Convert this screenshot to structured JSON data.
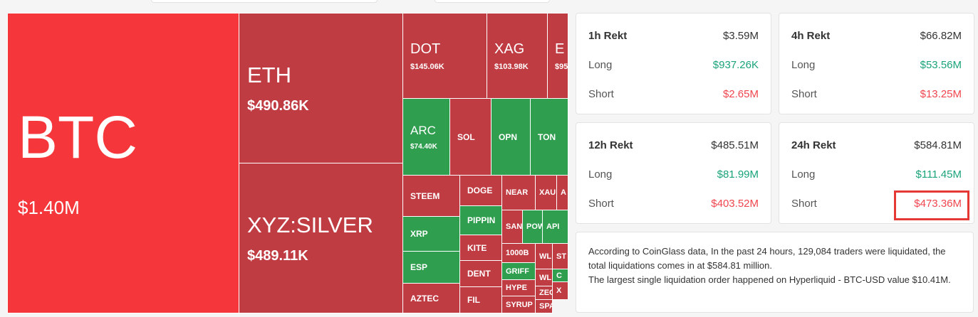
{
  "treemap": {
    "tiles": [
      {
        "label": "BTC",
        "value": "$1.40M",
        "color": "#f5363a"
      },
      {
        "label": "ETH",
        "value": "$490.86K",
        "color": "#c03c43"
      },
      {
        "label": "XYZ:SILVER",
        "value": "$489.11K",
        "color": "#c03c43"
      },
      {
        "label": "DOT",
        "value": "$145.06K",
        "color": "#c03c43"
      },
      {
        "label": "XAG",
        "value": "$103.98K",
        "color": "#c03c43"
      },
      {
        "label": "E",
        "value": "$95",
        "color": "#c03c43"
      },
      {
        "label": "ARC",
        "value": "$74.40K",
        "color": "#2f9e4f"
      },
      {
        "label": "SOL",
        "color": "#c03c43"
      },
      {
        "label": "OPN",
        "color": "#2f9e4f"
      },
      {
        "label": "TON",
        "color": "#2f9e4f"
      },
      {
        "label": "STEEM",
        "color": "#c03c43"
      },
      {
        "label": "XRP",
        "color": "#2f9e4f"
      },
      {
        "label": "ESP",
        "color": "#2f9e4f"
      },
      {
        "label": "AZTEC",
        "color": "#c03c43"
      },
      {
        "label": "DOGE",
        "color": "#c03c43"
      },
      {
        "label": "PIPPIN",
        "color": "#2f9e4f"
      },
      {
        "label": "KITE",
        "color": "#c03c43"
      },
      {
        "label": "DENT",
        "color": "#c03c43"
      },
      {
        "label": "FIL",
        "color": "#c03c43"
      },
      {
        "label": "NEAR",
        "color": "#c03c43"
      },
      {
        "label": "XAU",
        "color": "#c03c43"
      },
      {
        "label": "A",
        "color": "#c03c43"
      },
      {
        "label": "SAN",
        "color": "#c03c43"
      },
      {
        "label": "POW",
        "color": "#2f9e4f"
      },
      {
        "label": "API",
        "color": "#2f9e4f"
      },
      {
        "label": "1000B",
        "color": "#c03c43"
      },
      {
        "label": "WL",
        "color": "#c03c43"
      },
      {
        "label": "ST",
        "color": "#c03c43"
      },
      {
        "label": "GRIFF",
        "color": "#2f9e4f"
      },
      {
        "label": "WL",
        "color": "#c03c43"
      },
      {
        "label": "C",
        "color": "#2f9e4f"
      },
      {
        "label": "HYPE",
        "color": "#c03c43"
      },
      {
        "label": "ZEC",
        "color": "#c03c43"
      },
      {
        "label": "X",
        "color": "#c03c43"
      },
      {
        "label": "SYRUP",
        "color": "#c03c43"
      },
      {
        "label": "SPA",
        "color": "#c03c43"
      }
    ]
  },
  "cards": [
    {
      "title": "1h Rekt",
      "total": "$3.59M",
      "long_label": "Long",
      "long": "$937.26K",
      "short_label": "Short",
      "short": "$2.65M"
    },
    {
      "title": "4h Rekt",
      "total": "$66.82M",
      "long_label": "Long",
      "long": "$53.56M",
      "short_label": "Short",
      "short": "$13.25M"
    },
    {
      "title": "12h Rekt",
      "total": "$485.51M",
      "long_label": "Long",
      "long": "$81.99M",
      "short_label": "Short",
      "short": "$403.52M"
    },
    {
      "title": "24h Rekt",
      "total": "$584.81M",
      "long_label": "Long",
      "long": "$111.45M",
      "short_label": "Short",
      "short": "$473.36M"
    }
  ],
  "summary": [
    "According to CoinGlass data, In the past 24 hours, 129,084 traders were liquidated, the total liquidations comes in at $584.81 million.",
    "The largest single liquidation order happened on Hyperliquid - BTC-USD value $10.41M."
  ]
}
